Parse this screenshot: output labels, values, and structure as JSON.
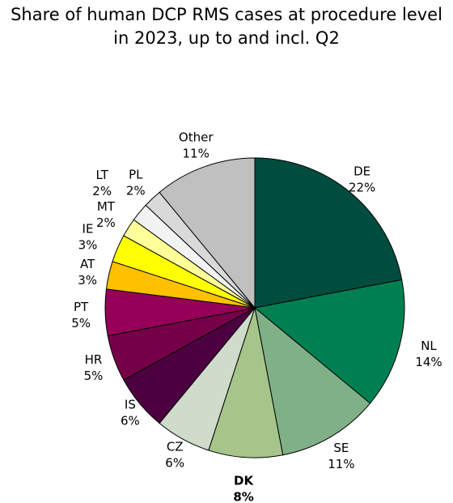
{
  "chart_data": {
    "type": "pie",
    "title": [
      "Share of human  DCP RMS cases at procedure level",
      "in 2023, up to and incl. Q2"
    ],
    "start_angle_deg": 0,
    "direction": "clockwise",
    "slices": [
      {
        "label": "DE",
        "value": 22,
        "display": "22%",
        "color": "#004d40",
        "bold": false
      },
      {
        "label": "NL",
        "value": 14,
        "display": "14%",
        "color": "#008050",
        "bold": false
      },
      {
        "label": "SE",
        "value": 11,
        "display": "11%",
        "color": "#80b088",
        "bold": false
      },
      {
        "label": "DK",
        "value": 8,
        "display": "8%",
        "color": "#a6c58a",
        "bold": true
      },
      {
        "label": "CZ",
        "value": 6,
        "display": "6%",
        "color": "#d0dccb",
        "bold": false
      },
      {
        "label": "IS",
        "value": 6,
        "display": "6%",
        "color": "#4d0040",
        "bold": false
      },
      {
        "label": "HR",
        "value": 5,
        "display": "5%",
        "color": "#760048",
        "bold": false
      },
      {
        "label": "PT",
        "value": 5,
        "display": "5%",
        "color": "#960058",
        "bold": false
      },
      {
        "label": "AT",
        "value": 3,
        "display": "3%",
        "color": "#ffc000",
        "bold": false
      },
      {
        "label": "IE",
        "value": 3,
        "display": "3%",
        "color": "#ffff00",
        "bold": false
      },
      {
        "label": "MT",
        "value": 2,
        "display": "2%",
        "color": "#ffff99",
        "bold": false
      },
      {
        "label": "LT",
        "value": 2,
        "display": "2%",
        "color": "#f2f2f2",
        "bold": false
      },
      {
        "label": "PL",
        "value": 2,
        "display": "2%",
        "color": "#d9d9d9",
        "bold": false
      },
      {
        "label": "Other",
        "value": 11,
        "display": "11%",
        "color": "#c0c0c0",
        "bold": false
      }
    ]
  }
}
